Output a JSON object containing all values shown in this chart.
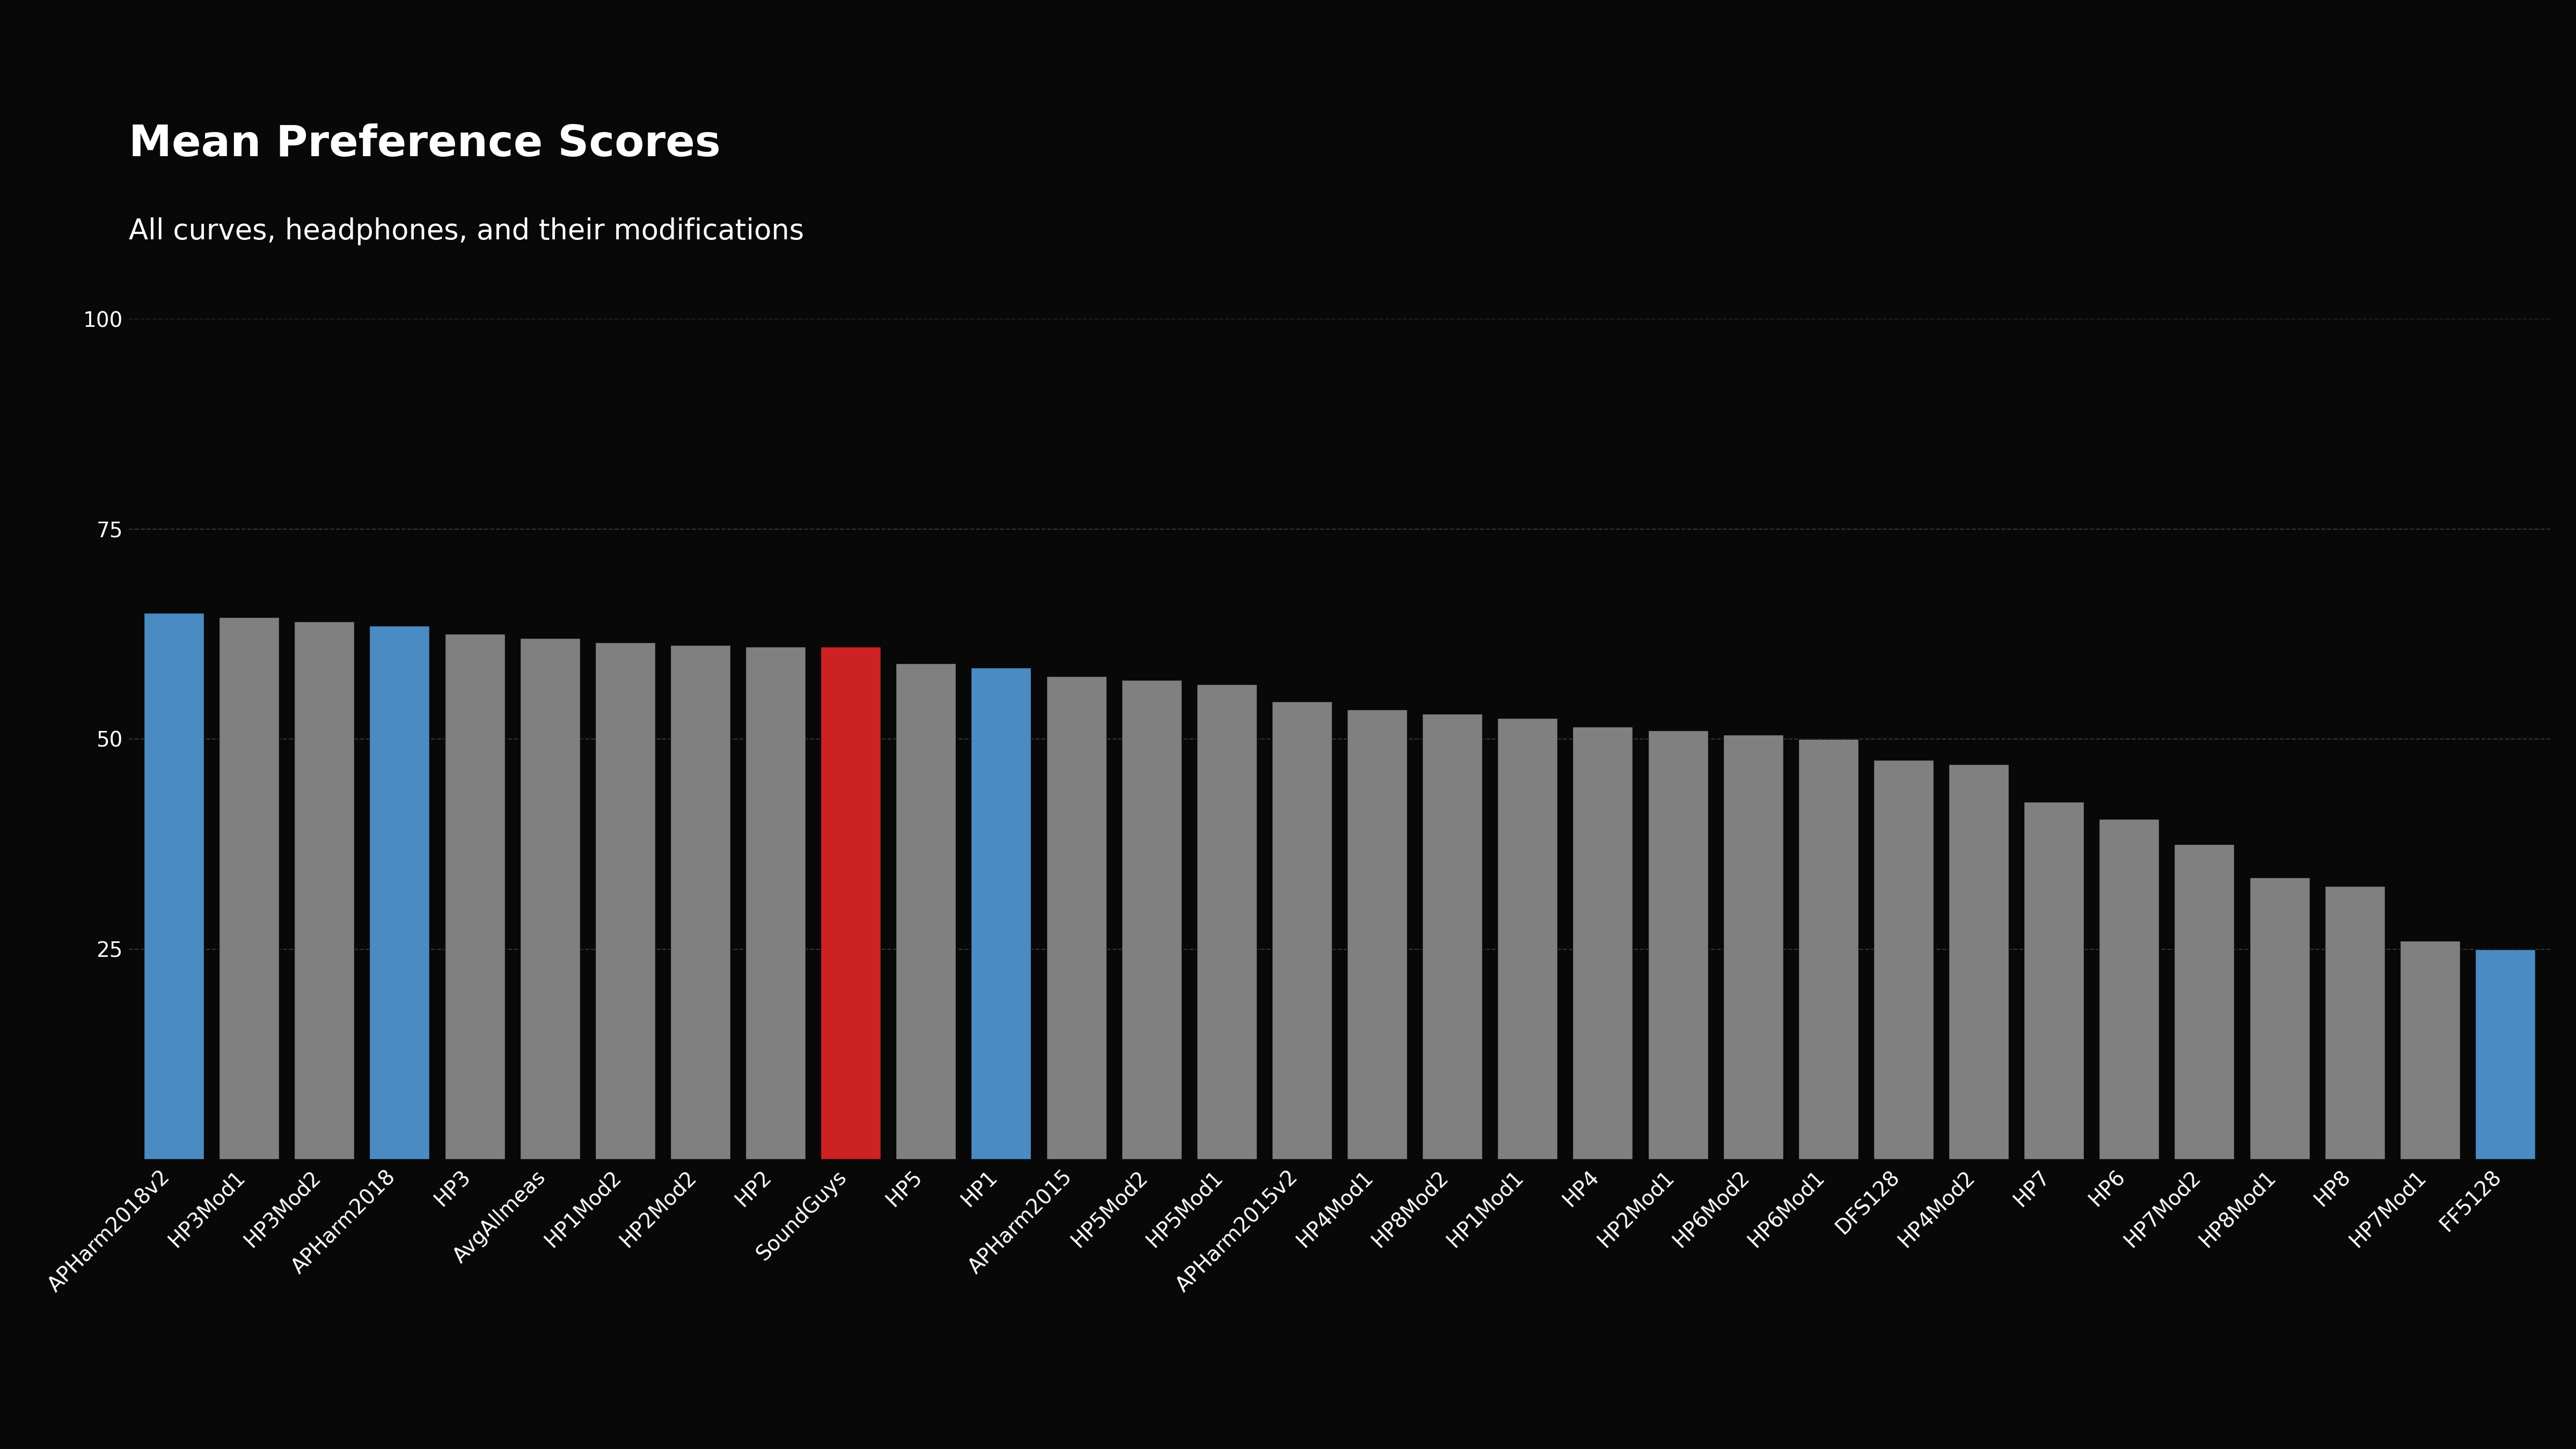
{
  "title": "Mean Preference Scores",
  "subtitle": "All curves, headphones, and their modifications",
  "background_color": "#080808",
  "text_color": "#ffffff",
  "title_fontsize": 58,
  "subtitle_fontsize": 38,
  "categories": [
    "APHarm2018v2",
    "HP3Mod1",
    "HP3Mod2",
    "APHarm2018",
    "HP3",
    "AvgAllmeas",
    "HP1Mod2",
    "HP2Mod2",
    "HP2",
    "SoundGuys",
    "HP5",
    "HP1",
    "APHarm2015",
    "HP5Mod2",
    "HP5Mod1",
    "APHarm2015v2",
    "HP4Mod1",
    "HP8Mod2",
    "HP1Mod1",
    "HP4",
    "HP2Mod1",
    "HP6Mod2",
    "HP6Mod1",
    "DFS128",
    "HP4Mod2",
    "HP7",
    "HP6",
    "HP7Mod2",
    "HP8Mod1",
    "HP8",
    "HP7Mod1",
    "FF5128"
  ],
  "values": [
    65.0,
    64.5,
    64.0,
    63.5,
    62.5,
    62.0,
    61.5,
    61.2,
    61.0,
    61.0,
    59.0,
    58.5,
    57.5,
    57.0,
    56.5,
    54.5,
    53.5,
    53.0,
    52.5,
    51.5,
    51.0,
    50.5,
    50.0,
    47.5,
    47.0,
    42.5,
    40.5,
    37.5,
    33.5,
    32.5,
    26.0,
    25.0
  ],
  "colors": [
    "#4a8bc4",
    "#808080",
    "#808080",
    "#4a8bc4",
    "#808080",
    "#808080",
    "#808080",
    "#808080",
    "#808080",
    "#cc2222",
    "#808080",
    "#4a8bc4",
    "#808080",
    "#808080",
    "#808080",
    "#808080",
    "#808080",
    "#808080",
    "#808080",
    "#808080",
    "#808080",
    "#808080",
    "#808080",
    "#808080",
    "#808080",
    "#808080",
    "#808080",
    "#808080",
    "#808080",
    "#808080",
    "#808080",
    "#4a8bc4"
  ],
  "ylim": [
    0,
    100
  ],
  "yticks": [
    25,
    50,
    75,
    100
  ],
  "grid_color": "#3a3a3a",
  "bar_edge_color": "#080808",
  "tick_fontsize": 28
}
